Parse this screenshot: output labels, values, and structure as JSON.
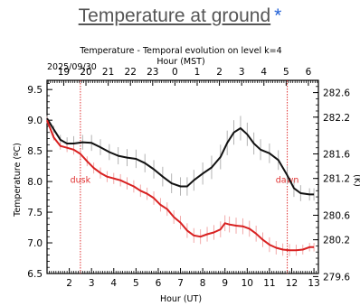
{
  "header": {
    "title": "Temperature at ground",
    "star": "*"
  },
  "chart_data": {
    "type": "line",
    "title": "Temperature - Temporal evolution on level k=4",
    "xlabel": "Hour (UT)",
    "x2label": "Hour (MST)",
    "ylabel": "Temperature (ºC)",
    "y2label": "(K)",
    "date_label": "2025/09/30",
    "xlim": [
      1.0,
      13.2
    ],
    "ylim": [
      6.5,
      9.65
    ],
    "y2lim": [
      279.65,
      282.8
    ],
    "x_ticks": [
      2,
      3,
      4,
      5,
      6,
      7,
      8,
      9,
      10,
      11,
      12,
      13
    ],
    "x_tick_labels": [
      "2",
      "3",
      "4",
      "5",
      "6",
      "7",
      "8",
      "9",
      "10",
      "11",
      "12",
      "13"
    ],
    "x2_ticks": [
      1.75,
      2.75,
      3.75,
      4.75,
      5.75,
      6.75,
      7.75,
      8.75,
      9.75,
      10.75,
      11.75,
      12.75
    ],
    "x2_tick_labels": [
      "19",
      "20",
      "21",
      "22",
      "23",
      "0",
      "1",
      "2",
      "3",
      "4",
      "5",
      "6"
    ],
    "y_ticks": [
      6.5,
      7.0,
      7.5,
      8.0,
      8.5,
      9.0,
      9.5
    ],
    "y_tick_labels": [
      "6.5",
      "7.0",
      "7.5",
      "8.0",
      "8.5",
      "9.0",
      "9.5"
    ],
    "y2_ticks": [
      279.6,
      280.2,
      280.6,
      281.2,
      281.6,
      282.2,
      282.6
    ],
    "y2_tick_labels": [
      "279.6",
      "280.2",
      "280.6",
      "281.2",
      "281.6",
      "282.2",
      "282.6"
    ],
    "annotations": [
      {
        "text": "dusk",
        "x": 2.5,
        "color": "#e03030"
      },
      {
        "text": "dawn",
        "x": 11.8,
        "color": "#e03030"
      }
    ],
    "grid": false,
    "series": [
      {
        "color": "#111111",
        "error_color": "#aaaaaa",
        "x": [
          1.0,
          1.3,
          1.6,
          1.9,
          2.2,
          2.6,
          3.0,
          3.4,
          3.8,
          4.2,
          4.6,
          5.0,
          5.4,
          5.8,
          6.2,
          6.6,
          7.0,
          7.3,
          7.6,
          8.0,
          8.4,
          8.8,
          9.1,
          9.4,
          9.7,
          10.0,
          10.3,
          10.6,
          11.0,
          11.4,
          11.8,
          12.1,
          12.4,
          12.8,
          13.0
        ],
        "y": [
          9.03,
          8.85,
          8.68,
          8.62,
          8.62,
          8.64,
          8.63,
          8.56,
          8.48,
          8.42,
          8.39,
          8.37,
          8.3,
          8.2,
          8.08,
          7.97,
          7.92,
          7.92,
          8.02,
          8.13,
          8.23,
          8.4,
          8.63,
          8.8,
          8.87,
          8.77,
          8.62,
          8.52,
          8.46,
          8.35,
          8.1,
          7.89,
          7.81,
          7.79,
          7.79
        ],
        "err": [
          0.05,
          0.06,
          0.08,
          0.1,
          0.12,
          0.12,
          0.13,
          0.13,
          0.13,
          0.14,
          0.14,
          0.15,
          0.15,
          0.15,
          0.16,
          0.16,
          0.15,
          0.15,
          0.17,
          0.18,
          0.19,
          0.2,
          0.2,
          0.2,
          0.2,
          0.19,
          0.18,
          0.17,
          0.16,
          0.16,
          0.15,
          0.14,
          0.13,
          0.1,
          0.1
        ]
      },
      {
        "color": "#d82020",
        "error_color": "#f0a0a0",
        "x": [
          1.0,
          1.3,
          1.6,
          1.9,
          2.2,
          2.5,
          2.8,
          3.1,
          3.4,
          3.7,
          4.0,
          4.3,
          4.6,
          4.9,
          5.2,
          5.5,
          5.8,
          6.1,
          6.4,
          6.7,
          7.0,
          7.3,
          7.6,
          7.9,
          8.2,
          8.5,
          8.8,
          9.0,
          9.2,
          9.5,
          9.8,
          10.1,
          10.4,
          10.7,
          11.0,
          11.3,
          11.6,
          11.9,
          12.2,
          12.5,
          12.8,
          13.0
        ],
        "y": [
          9.0,
          8.72,
          8.58,
          8.55,
          8.52,
          8.45,
          8.33,
          8.22,
          8.14,
          8.08,
          8.05,
          8.02,
          7.97,
          7.92,
          7.85,
          7.8,
          7.73,
          7.62,
          7.55,
          7.42,
          7.33,
          7.2,
          7.12,
          7.1,
          7.14,
          7.17,
          7.22,
          7.32,
          7.3,
          7.28,
          7.27,
          7.23,
          7.15,
          7.05,
          6.97,
          6.92,
          6.89,
          6.88,
          6.88,
          6.89,
          6.93,
          6.93
        ],
        "err": [
          0.05,
          0.05,
          0.06,
          0.07,
          0.08,
          0.08,
          0.08,
          0.09,
          0.09,
          0.09,
          0.09,
          0.1,
          0.1,
          0.1,
          0.1,
          0.1,
          0.11,
          0.11,
          0.11,
          0.11,
          0.11,
          0.12,
          0.12,
          0.12,
          0.12,
          0.12,
          0.13,
          0.13,
          0.13,
          0.13,
          0.13,
          0.13,
          0.13,
          0.12,
          0.12,
          0.11,
          0.1,
          0.1,
          0.09,
          0.08,
          0.07,
          0.07
        ]
      }
    ]
  }
}
